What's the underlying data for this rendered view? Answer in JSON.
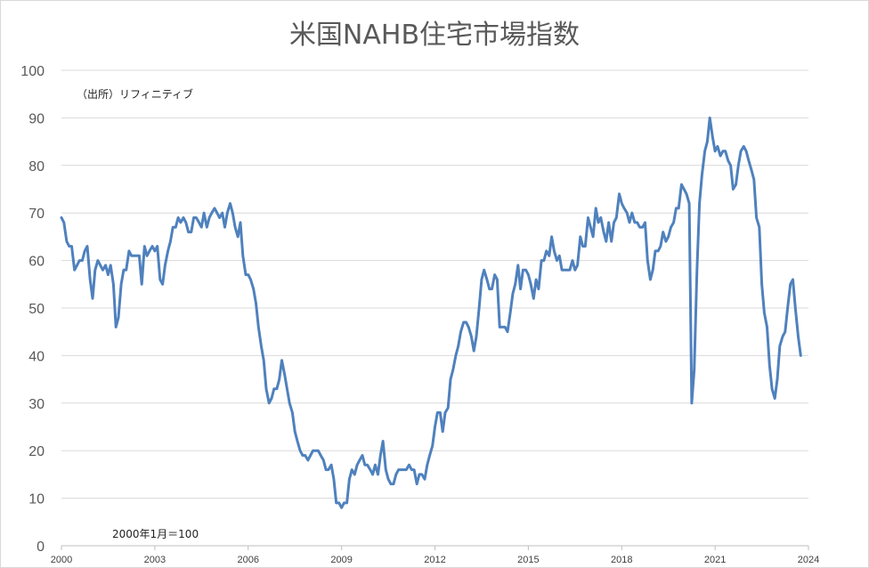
{
  "chart_data": {
    "type": "line",
    "title": "米国NAHB住宅市場指数",
    "xlabel": "",
    "ylabel": "",
    "xlim": [
      2000,
      2024
    ],
    "ylim": [
      0,
      100
    ],
    "y_ticks": [
      0,
      10,
      20,
      30,
      40,
      50,
      60,
      70,
      80,
      90,
      100
    ],
    "x_ticks": [
      2000,
      2003,
      2006,
      2009,
      2012,
      2015,
      2018,
      2021,
      2024
    ],
    "grid": "horizontal",
    "legend": "none",
    "line_color": "#4f81bd",
    "annotations": {
      "source": "（出所）リフィニティブ",
      "base": "2000年1月＝100"
    },
    "series": [
      {
        "x": [
          2000.0,
          2000.08,
          2000.17,
          2000.25,
          2000.33,
          2000.42,
          2000.5,
          2000.58,
          2000.67,
          2000.75,
          2000.83,
          2000.92,
          2001.0,
          2001.08,
          2001.17,
          2001.25,
          2001.33,
          2001.42,
          2001.5,
          2001.58,
          2001.67,
          2001.75,
          2001.83,
          2001.92,
          2002.0,
          2002.08,
          2002.17,
          2002.25,
          2002.33,
          2002.42,
          2002.5,
          2002.58,
          2002.67,
          2002.75,
          2002.83,
          2002.92,
          2003.0,
          2003.08,
          2003.17,
          2003.25,
          2003.33,
          2003.42,
          2003.5,
          2003.58,
          2003.67,
          2003.75,
          2003.83,
          2003.92,
          2004.0,
          2004.08,
          2004.17,
          2004.25,
          2004.33,
          2004.42,
          2004.5,
          2004.58,
          2004.67,
          2004.75,
          2004.83,
          2004.92,
          2005.0,
          2005.08,
          2005.17,
          2005.25,
          2005.33,
          2005.42,
          2005.5,
          2005.58,
          2005.67,
          2005.75,
          2005.83,
          2005.92,
          2006.0,
          2006.08,
          2006.17,
          2006.25,
          2006.33,
          2006.42,
          2006.5,
          2006.58,
          2006.67,
          2006.75,
          2006.83,
          2006.92,
          2007.0,
          2007.08,
          2007.17,
          2007.25,
          2007.33,
          2007.42,
          2007.5,
          2007.58,
          2007.67,
          2007.75,
          2007.83,
          2007.92,
          2008.0,
          2008.08,
          2008.17,
          2008.25,
          2008.33,
          2008.42,
          2008.5,
          2008.58,
          2008.67,
          2008.75,
          2008.83,
          2008.92,
          2009.0,
          2009.08,
          2009.17,
          2009.25,
          2009.33,
          2009.42,
          2009.5,
          2009.58,
          2009.67,
          2009.75,
          2009.83,
          2009.92,
          2010.0,
          2010.08,
          2010.17,
          2010.25,
          2010.33,
          2010.42,
          2010.5,
          2010.58,
          2010.67,
          2010.75,
          2010.83,
          2010.92,
          2011.0,
          2011.08,
          2011.17,
          2011.25,
          2011.33,
          2011.42,
          2011.5,
          2011.58,
          2011.67,
          2011.75,
          2011.83,
          2011.92,
          2012.0,
          2012.08,
          2012.17,
          2012.25,
          2012.33,
          2012.42,
          2012.5,
          2012.58,
          2012.67,
          2012.75,
          2012.83,
          2012.92,
          2013.0,
          2013.08,
          2013.17,
          2013.25,
          2013.33,
          2013.42,
          2013.5,
          2013.58,
          2013.67,
          2013.75,
          2013.83,
          2013.92,
          2014.0,
          2014.08,
          2014.17,
          2014.25,
          2014.33,
          2014.42,
          2014.5,
          2014.58,
          2014.67,
          2014.75,
          2014.83,
          2014.92,
          2015.0,
          2015.08,
          2015.17,
          2015.25,
          2015.33,
          2015.42,
          2015.5,
          2015.58,
          2015.67,
          2015.75,
          2015.83,
          2015.92,
          2016.0,
          2016.08,
          2016.17,
          2016.25,
          2016.33,
          2016.42,
          2016.5,
          2016.58,
          2016.67,
          2016.75,
          2016.83,
          2016.92,
          2017.0,
          2017.08,
          2017.17,
          2017.25,
          2017.33,
          2017.42,
          2017.5,
          2017.58,
          2017.67,
          2017.75,
          2017.83,
          2017.92,
          2018.0,
          2018.08,
          2018.17,
          2018.25,
          2018.33,
          2018.42,
          2018.5,
          2018.58,
          2018.67,
          2018.75,
          2018.83,
          2018.92,
          2019.0,
          2019.08,
          2019.17,
          2019.25,
          2019.33,
          2019.42,
          2019.5,
          2019.58,
          2019.67,
          2019.75,
          2019.83,
          2019.92,
          2020.0,
          2020.08,
          2020.17,
          2020.25,
          2020.33,
          2020.42,
          2020.5,
          2020.58,
          2020.67,
          2020.75,
          2020.83,
          2020.92,
          2021.0,
          2021.08,
          2021.17,
          2021.25,
          2021.33,
          2021.42,
          2021.5,
          2021.58,
          2021.67,
          2021.75,
          2021.83,
          2021.92,
          2022.0,
          2022.08,
          2022.17,
          2022.25,
          2022.33,
          2022.42,
          2022.5,
          2022.58,
          2022.67,
          2022.75,
          2022.83,
          2022.92,
          2023.0,
          2023.08,
          2023.17,
          2023.25,
          2023.33,
          2023.42,
          2023.5,
          2023.58,
          2023.67,
          2023.75
        ],
        "values": [
          69,
          68,
          64,
          63,
          63,
          58,
          59,
          60,
          60,
          62,
          63,
          56,
          52,
          58,
          60,
          59,
          58,
          59,
          57,
          59,
          55,
          46,
          48,
          55,
          58,
          58,
          62,
          61,
          61,
          61,
          61,
          55,
          63,
          61,
          62,
          63,
          62,
          63,
          56,
          55,
          59,
          62,
          64,
          67,
          67,
          69,
          68,
          69,
          68,
          66,
          66,
          69,
          69,
          68,
          67,
          70,
          67,
          69,
          70,
          71,
          70,
          69,
          70,
          67,
          70,
          72,
          70,
          67,
          65,
          68,
          61,
          57,
          57,
          56,
          54,
          51,
          46,
          42,
          39,
          33,
          30,
          31,
          33,
          33,
          35,
          39,
          36,
          33,
          30,
          28,
          24,
          22,
          20,
          19,
          19,
          18,
          19,
          20,
          20,
          20,
          19,
          18,
          16,
          16,
          17,
          14,
          9,
          9,
          8,
          9,
          9,
          14,
          16,
          15,
          17,
          18,
          19,
          17,
          17,
          16,
          15,
          17,
          15,
          19,
          22,
          16,
          14,
          13,
          13,
          15,
          16,
          16,
          16,
          16,
          17,
          16,
          16,
          13,
          15,
          15,
          14,
          17,
          19,
          21,
          25,
          28,
          28,
          24,
          28,
          29,
          35,
          37,
          40,
          42,
          45,
          47,
          47,
          46,
          44,
          41,
          44,
          50,
          56,
          58,
          56,
          54,
          54,
          57,
          56,
          46,
          46,
          46,
          45,
          49,
          53,
          55,
          59,
          54,
          58,
          58,
          57,
          55,
          52,
          56,
          54,
          60,
          60,
          62,
          61,
          65,
          62,
          60,
          61,
          58,
          58,
          58,
          58,
          60,
          58,
          59,
          65,
          63,
          63,
          69,
          67,
          65,
          71,
          68,
          69,
          66,
          64,
          68,
          64,
          68,
          69,
          74,
          72,
          71,
          70,
          68,
          70,
          68,
          68,
          67,
          67,
          68,
          60,
          56,
          58,
          62,
          62,
          63,
          66,
          64,
          65,
          67,
          68,
          71,
          71,
          76,
          75,
          74,
          72,
          30,
          37,
          58,
          72,
          78,
          83,
          85,
          90,
          86,
          83,
          84,
          82,
          83,
          83,
          81,
          80,
          75,
          76,
          80,
          83,
          84,
          83,
          81,
          79,
          77,
          69,
          67,
          55,
          49,
          46,
          38,
          33,
          31,
          35,
          42,
          44,
          45,
          50,
          55,
          56,
          50,
          44,
          40
        ]
      }
    ]
  }
}
